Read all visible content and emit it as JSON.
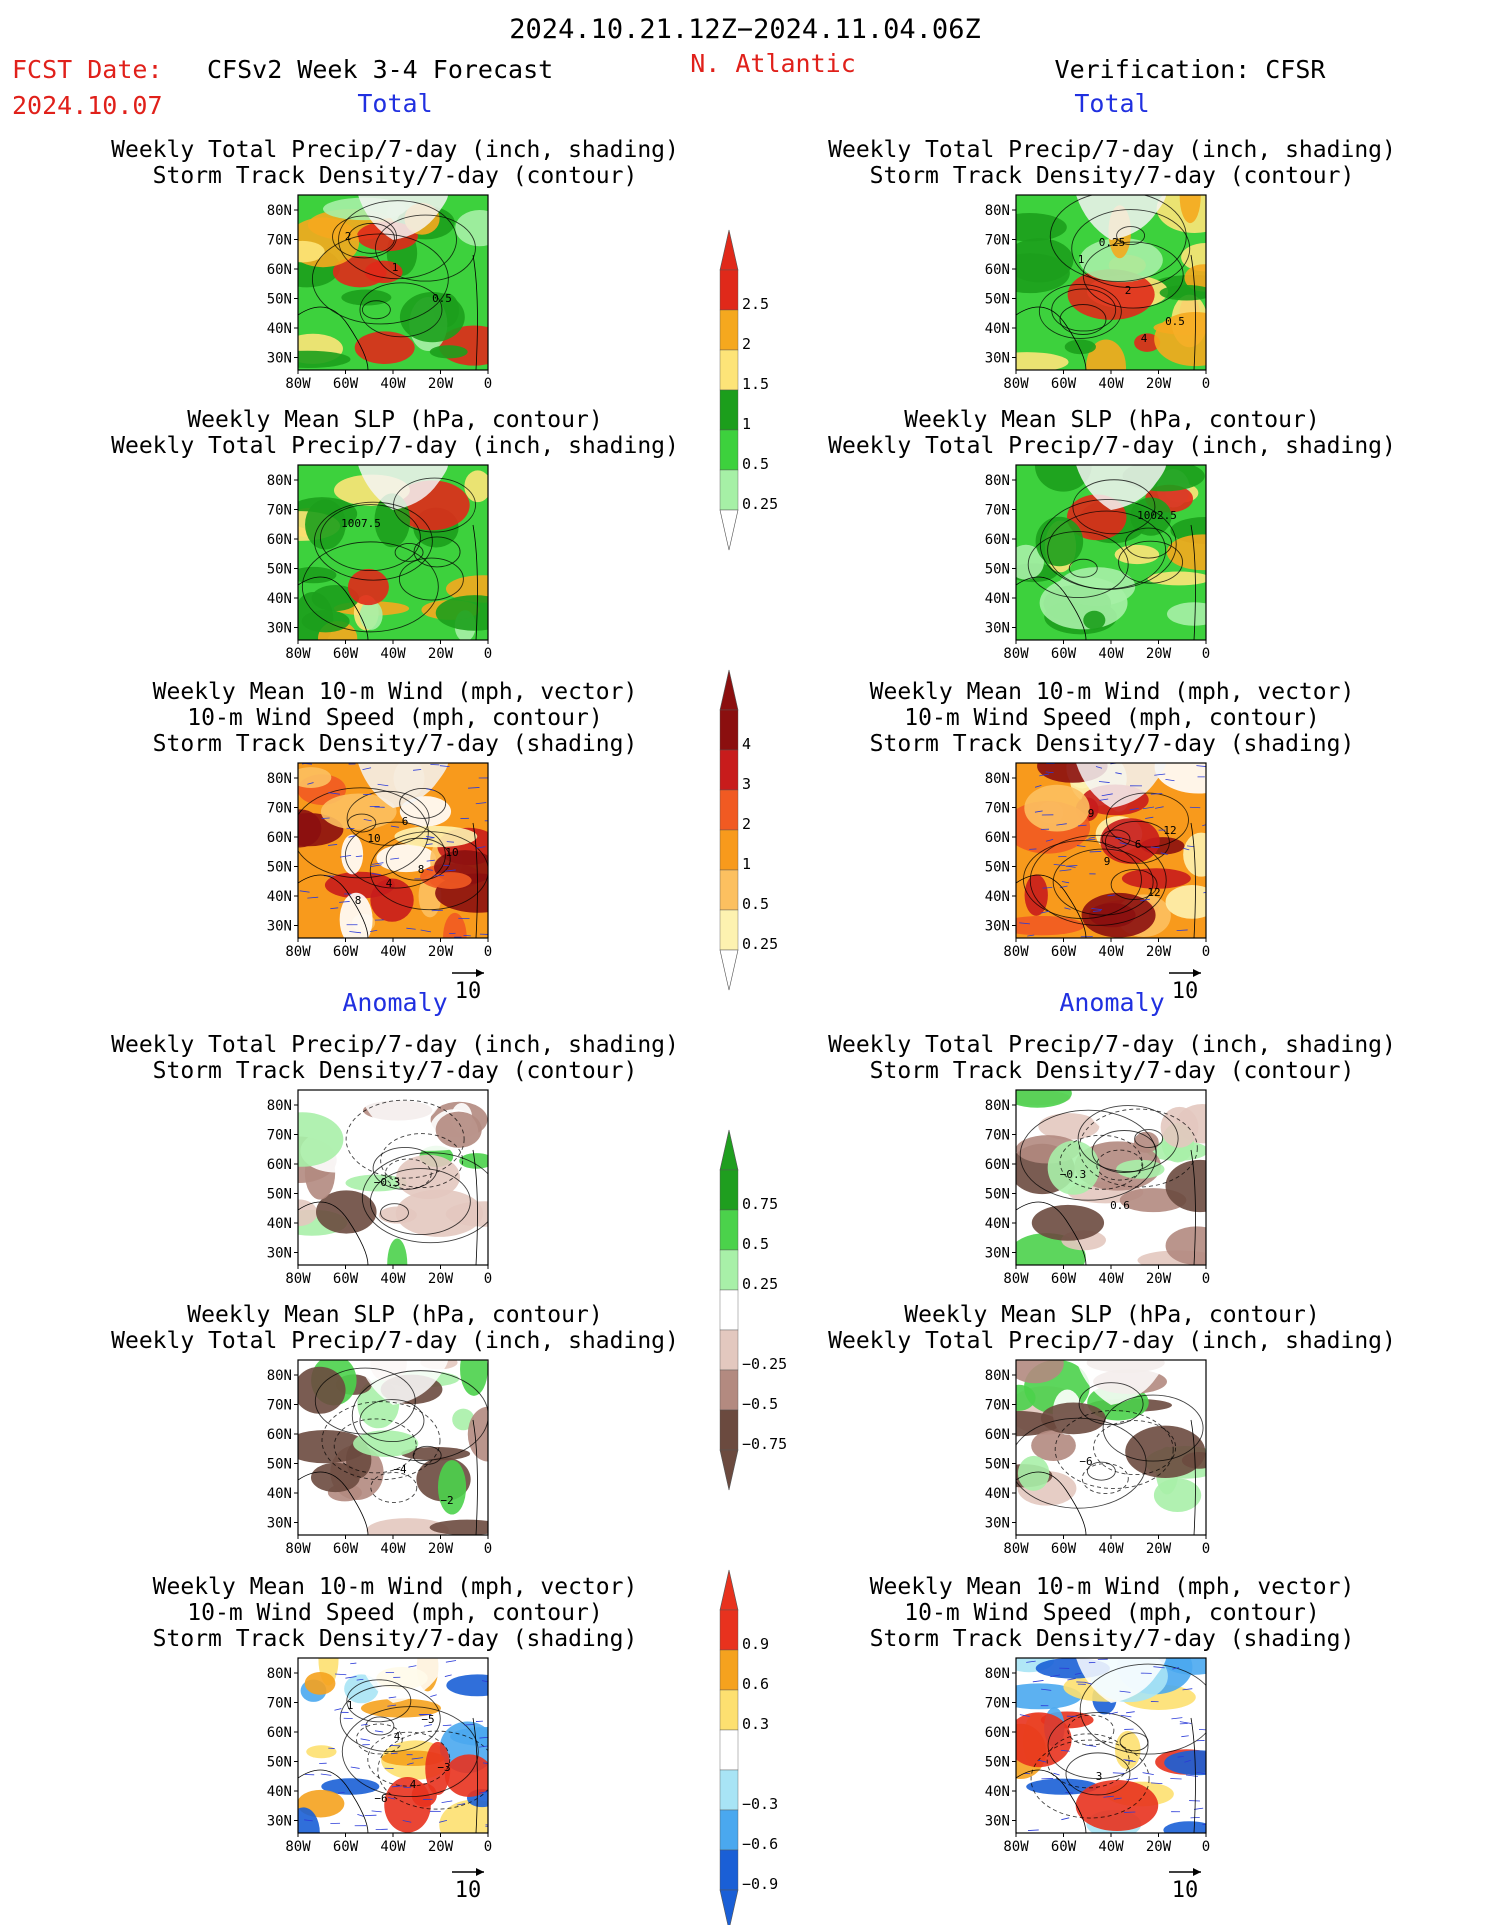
{
  "header": {
    "date_range": "2024.10.21.12Z−2024.11.04.06Z",
    "fcst_label": "FCST Date:",
    "fcst_date": "2024.10.07",
    "model_title": "CFSv2 Week 3-4 Forecast",
    "region": "N. Atlantic",
    "verification": "Verification: CFSR"
  },
  "sections": {
    "total": "Total",
    "anomaly": "Anomaly"
  },
  "titles": {
    "precip_shading": "Weekly Total Precip/7-day (inch, shading)",
    "storm_contour": "Storm Track Density/7-day (contour)",
    "slp_contour": "Weekly Mean SLP (hPa, contour)",
    "wind_vector": "Weekly Mean 10-m Wind (mph, vector)",
    "wind_speed": "10-m Wind Speed (mph, contour)",
    "storm_shading": "Storm Track Density/7-day (shading)"
  },
  "axes": {
    "lat_ticks": [
      "80N",
      "70N",
      "60N",
      "50N",
      "40N",
      "30N"
    ],
    "lon_ticks": [
      "80W",
      "60W",
      "40W",
      "20W",
      "0"
    ]
  },
  "vector_ref": "10",
  "colorbars": [
    {
      "labels": [
        "2.5",
        "2",
        "1.5",
        "1",
        "0.5",
        "0.25"
      ],
      "colors": [
        "#e0291a",
        "#f5a81e",
        "#fde478",
        "#1c9e1c",
        "#3dd13d",
        "#a6f0a6"
      ],
      "tip_top": "#e0291a",
      "tip_bottom": "#ffffff"
    },
    {
      "labels": [
        "4",
        "3",
        "2",
        "1",
        "0.5",
        "0.25"
      ],
      "colors": [
        "#8b0f0f",
        "#c81c1c",
        "#f15a22",
        "#f89a1c",
        "#fcc060",
        "#fdf2b0"
      ],
      "tip_top": "#8b0f0f",
      "tip_bottom": "#ffffff"
    },
    {
      "labels": [
        "0.75",
        "0.5",
        "0.25",
        "−0.25",
        "−0.5",
        "−0.75"
      ],
      "colors": [
        "#1f9e1f",
        "#4bd24b",
        "#a8f0a8",
        "#ffffff",
        "#e3c8bf",
        "#b38a80",
        "#6b4a3f"
      ],
      "tip_top": "#1f9e1f",
      "tip_bottom": "#6b4a3f"
    },
    {
      "labels": [
        "0.9",
        "0.6",
        "0.3",
        "−0.3",
        "−0.6",
        "−0.9"
      ],
      "colors": [
        "#e8321e",
        "#f5a21e",
        "#fde070",
        "#ffffff",
        "#a8e4f5",
        "#4aa8ef",
        "#1a5fd6"
      ],
      "tip_top": "#e8321e",
      "tip_bottom": "#1a5fd6"
    }
  ],
  "maps": [
    {
      "id": "ft1",
      "col": 0,
      "row": 0,
      "titles": [
        "precip_shading",
        "storm_contour"
      ],
      "labels": [
        "2",
        "1",
        "0.5"
      ]
    },
    {
      "id": "ft2",
      "col": 0,
      "row": 1,
      "titles": [
        "slp_contour",
        "precip_shading"
      ],
      "labels": [
        "1007.5"
      ]
    },
    {
      "id": "ft3",
      "col": 0,
      "row": 2,
      "titles": [
        "wind_vector",
        "wind_speed",
        "storm_shading"
      ],
      "labels": [
        "10",
        "8",
        "8",
        "6",
        "10",
        "4"
      ]
    },
    {
      "id": "fa1",
      "col": 0,
      "row": 3,
      "titles": [
        "precip_shading",
        "storm_contour"
      ],
      "labels": [
        "−0.3"
      ]
    },
    {
      "id": "fa2",
      "col": 0,
      "row": 4,
      "titles": [
        "slp_contour",
        "precip_shading"
      ],
      "labels": [
        "−4",
        "−2"
      ]
    },
    {
      "id": "fa3",
      "col": 0,
      "row": 5,
      "titles": [
        "wind_vector",
        "wind_speed",
        "storm_shading"
      ],
      "labels": [
        "4",
        "1",
        "4",
        "−3",
        "−6",
        "−5"
      ]
    },
    {
      "id": "vt1",
      "col": 1,
      "row": 0,
      "titles": [
        "precip_shading",
        "storm_contour"
      ],
      "labels": [
        "4",
        "1",
        "2",
        "0.5",
        "0.25"
      ]
    },
    {
      "id": "vt2",
      "col": 1,
      "row": 1,
      "titles": [
        "slp_contour",
        "precip_shading"
      ],
      "labels": [
        "1002.5"
      ]
    },
    {
      "id": "vt3",
      "col": 1,
      "row": 2,
      "titles": [
        "wind_vector",
        "wind_speed",
        "storm_shading"
      ],
      "labels": [
        "12",
        "9",
        "12",
        "9",
        "6"
      ]
    },
    {
      "id": "va1",
      "col": 1,
      "row": 3,
      "titles": [
        "precip_shading",
        "storm_contour"
      ],
      "labels": [
        "−0.3",
        "0.6"
      ]
    },
    {
      "id": "va2",
      "col": 1,
      "row": 4,
      "titles": [
        "slp_contour",
        "precip_shading"
      ],
      "labels": [
        "−6"
      ]
    },
    {
      "id": "va3",
      "col": 1,
      "row": 5,
      "titles": [
        "wind_vector",
        "wind_speed",
        "storm_shading"
      ],
      "labels": [
        "3"
      ]
    }
  ]
}
